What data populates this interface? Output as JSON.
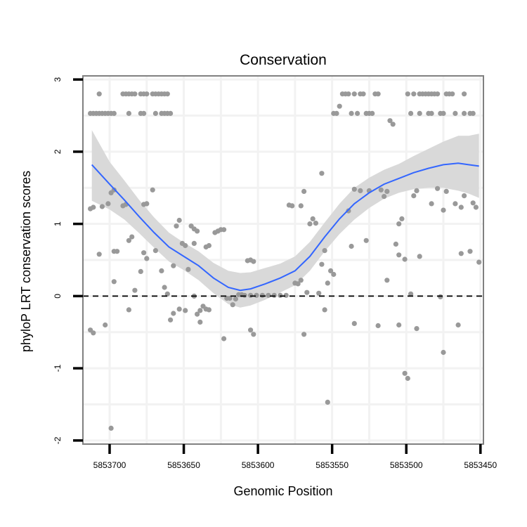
{
  "chart_data": {
    "type": "scatter",
    "title": "Conservation",
    "xlabel": "Genomic Position",
    "ylabel": "phyloP LRT conservation scores",
    "x_reversed": true,
    "xlim": [
      5853718,
      5853448
    ],
    "ylim": [
      -2.05,
      3.05
    ],
    "x_ticks": [
      5853700,
      5853650,
      5853600,
      5853550,
      5853500,
      5853450
    ],
    "x_tick_labels": [
      "5853700",
      "5853650",
      "5853600",
      "5853550",
      "5853500",
      "5853450"
    ],
    "y_ticks": [
      -2,
      -1,
      0,
      1,
      2,
      3
    ],
    "y_tick_labels": [
      "-2",
      "-1",
      "0",
      "1",
      "2",
      "3"
    ],
    "grid": true,
    "reference_line": {
      "y": 0,
      "style": "dashed",
      "color": "#000000"
    },
    "colors": {
      "points": "#999999",
      "smooth": "#3366ff",
      "band": "#d9d9d9",
      "panel_border": "#808080",
      "grid": "#f2f2f2"
    },
    "points": [
      [
        5853713,
        2.53
      ],
      [
        5853711,
        2.53
      ],
      [
        5853709,
        2.53
      ],
      [
        5853707,
        2.53
      ],
      [
        5853705,
        2.53
      ],
      [
        5853703,
        2.53
      ],
      [
        5853701,
        2.53
      ],
      [
        5853699,
        2.53
      ],
      [
        5853697,
        2.53
      ],
      [
        5853707,
        2.8
      ],
      [
        5853691,
        2.8
      ],
      [
        5853689,
        2.8
      ],
      [
        5853687,
        2.8
      ],
      [
        5853685,
        2.8
      ],
      [
        5853683,
        2.8
      ],
      [
        5853679,
        2.8
      ],
      [
        5853677,
        2.8
      ],
      [
        5853675,
        2.8
      ],
      [
        5853671,
        2.8
      ],
      [
        5853669,
        2.8
      ],
      [
        5853667,
        2.8
      ],
      [
        5853665,
        2.8
      ],
      [
        5853663,
        2.8
      ],
      [
        5853661,
        2.8
      ],
      [
        5853687,
        2.53
      ],
      [
        5853679,
        2.53
      ],
      [
        5853677,
        2.53
      ],
      [
        5853669,
        2.53
      ],
      [
        5853665,
        2.53
      ],
      [
        5853663,
        2.53
      ],
      [
        5853661,
        2.53
      ],
      [
        5853659,
        2.53
      ],
      [
        5853713,
        1.21
      ],
      [
        5853711,
        1.23
      ],
      [
        5853707,
        0.58
      ],
      [
        5853705,
        1.24
      ],
      [
        5853701,
        1.28
      ],
      [
        5853699,
        1.43
      ],
      [
        5853697,
        1.47
      ],
      [
        5853697,
        0.62
      ],
      [
        5853695,
        0.62
      ],
      [
        5853697,
        0.2
      ],
      [
        5853691,
        1.25
      ],
      [
        5853689,
        1.27
      ],
      [
        5853713,
        -0.47
      ],
      [
        5853711,
        -0.51
      ],
      [
        5853703,
        -0.4
      ],
      [
        5853699,
        -1.83
      ],
      [
        5853687,
        0.77
      ],
      [
        5853685,
        0.82
      ],
      [
        5853687,
        -0.19
      ],
      [
        5853683,
        0.08
      ],
      [
        5853679,
        0.34
      ],
      [
        5853677,
        1.27
      ],
      [
        5853675,
        1.28
      ],
      [
        5853677,
        0.6
      ],
      [
        5853675,
        0.52
      ],
      [
        5853671,
        1.47
      ],
      [
        5853669,
        0.63
      ],
      [
        5853665,
        0.35
      ],
      [
        5853663,
        0.12
      ],
      [
        5853661,
        0.03
      ],
      [
        5853659,
        -0.33
      ],
      [
        5853657,
        -0.24
      ],
      [
        5853657,
        0.42
      ],
      [
        5853655,
        0.97
      ],
      [
        5853653,
        1.05
      ],
      [
        5853651,
        0.73
      ],
      [
        5853649,
        0.7
      ],
      [
        5853647,
        0.37
      ],
      [
        5853645,
        0.97
      ],
      [
        5853643,
        0.93
      ],
      [
        5853643,
        0.73
      ],
      [
        5853641,
        0.9
      ],
      [
        5853653,
        -0.18
      ],
      [
        5853649,
        -0.2
      ],
      [
        5853643,
        0.0
      ],
      [
        5853641,
        -0.25
      ],
      [
        5853639,
        -0.36
      ],
      [
        5853639,
        -0.2
      ],
      [
        5853637,
        -0.14
      ],
      [
        5853635,
        -0.18
      ],
      [
        5853633,
        -0.19
      ],
      [
        5853635,
        0.68
      ],
      [
        5853633,
        0.7
      ],
      [
        5853629,
        0.88
      ],
      [
        5853627,
        0.9
      ],
      [
        5853625,
        0.92
      ],
      [
        5853623,
        0.92
      ],
      [
        5853621,
        -0.03
      ],
      [
        5853619,
        -0.03
      ],
      [
        5853617,
        -0.12
      ],
      [
        5853615,
        -0.04
      ],
      [
        5853613,
        0.02
      ],
      [
        5853611,
        0.02
      ],
      [
        5853623,
        -0.59
      ],
      [
        5853607,
        0.49
      ],
      [
        5853605,
        0.5
      ],
      [
        5853603,
        0.48
      ],
      [
        5853605,
        -0.47
      ],
      [
        5853603,
        -0.53
      ],
      [
        5853609,
        0.01
      ],
      [
        5853605,
        0.01
      ],
      [
        5853601,
        0.01
      ],
      [
        5853597,
        0.01
      ],
      [
        5853593,
        0.01
      ],
      [
        5853589,
        0.01
      ],
      [
        5853585,
        0.01
      ],
      [
        5853581,
        0.01
      ],
      [
        5853579,
        1.26
      ],
      [
        5853577,
        1.25
      ],
      [
        5853575,
        0.18
      ],
      [
        5853573,
        0.17
      ],
      [
        5853571,
        0.22
      ],
      [
        5853571,
        1.25
      ],
      [
        5853569,
        1.45
      ],
      [
        5853569,
        -0.53
      ],
      [
        5853567,
        0.05
      ],
      [
        5853565,
        1.0
      ],
      [
        5853563,
        1.07
      ],
      [
        5853561,
        1.01
      ],
      [
        5853559,
        0.04
      ],
      [
        5853557,
        0.44
      ],
      [
        5853557,
        1.7
      ],
      [
        5853555,
        0.63
      ],
      [
        5853555,
        -0.19
      ],
      [
        5853553,
        0.18
      ],
      [
        5853553,
        -1.47
      ],
      [
        5853551,
        0.35
      ],
      [
        5853549,
        0.3
      ],
      [
        5853549,
        2.53
      ],
      [
        5853547,
        2.53
      ],
      [
        5853545,
        2.63
      ],
      [
        5853543,
        2.8
      ],
      [
        5853541,
        2.8
      ],
      [
        5853539,
        2.8
      ],
      [
        5853537,
        2.53
      ],
      [
        5853535,
        2.8
      ],
      [
        5853533,
        2.53
      ],
      [
        5853531,
        2.8
      ],
      [
        5853529,
        2.8
      ],
      [
        5853527,
        2.53
      ],
      [
        5853525,
        2.53
      ],
      [
        5853523,
        2.53
      ],
      [
        5853521,
        2.8
      ],
      [
        5853519,
        2.8
      ],
      [
        5853539,
        1.18
      ],
      [
        5853537,
        0.69
      ],
      [
        5853535,
        1.48
      ],
      [
        5853535,
        -0.38
      ],
      [
        5853531,
        1.46
      ],
      [
        5853527,
        0.77
      ],
      [
        5853525,
        1.46
      ],
      [
        5853519,
        -0.41
      ],
      [
        5853517,
        1.47
      ],
      [
        5853515,
        1.38
      ],
      [
        5853513,
        1.45
      ],
      [
        5853511,
        2.43
      ],
      [
        5853509,
        2.38
      ],
      [
        5853513,
        0.22
      ],
      [
        5853507,
        0.72
      ],
      [
        5853505,
        0.57
      ],
      [
        5853505,
        1.0
      ],
      [
        5853503,
        1.07
      ],
      [
        5853501,
        0.51
      ],
      [
        5853505,
        -0.4
      ],
      [
        5853501,
        -1.07
      ],
      [
        5853499,
        -1.14
      ],
      [
        5853497,
        0.03
      ],
      [
        5853499,
        2.8
      ],
      [
        5853495,
        2.8
      ],
      [
        5853491,
        2.8
      ],
      [
        5853489,
        2.8
      ],
      [
        5853487,
        2.8
      ],
      [
        5853485,
        2.8
      ],
      [
        5853483,
        2.8
      ],
      [
        5853481,
        2.8
      ],
      [
        5853479,
        2.8
      ],
      [
        5853473,
        2.8
      ],
      [
        5853471,
        2.8
      ],
      [
        5853469,
        2.8
      ],
      [
        5853461,
        2.8
      ],
      [
        5853497,
        2.53
      ],
      [
        5853491,
        2.53
      ],
      [
        5853485,
        2.53
      ],
      [
        5853483,
        2.53
      ],
      [
        5853477,
        2.53
      ],
      [
        5853475,
        2.53
      ],
      [
        5853467,
        2.53
      ],
      [
        5853461,
        2.53
      ],
      [
        5853457,
        2.53
      ],
      [
        5853455,
        2.53
      ],
      [
        5853495,
        1.39
      ],
      [
        5853493,
        1.46
      ],
      [
        5853491,
        0.55
      ],
      [
        5853493,
        -0.45
      ],
      [
        5853483,
        1.28
      ],
      [
        5853479,
        1.49
      ],
      [
        5853477,
        -0.01
      ],
      [
        5853475,
        1.19
      ],
      [
        5853473,
        1.45
      ],
      [
        5853475,
        -0.78
      ],
      [
        5853467,
        1.28
      ],
      [
        5853465,
        -0.4
      ],
      [
        5853463,
        0.59
      ],
      [
        5853463,
        1.23
      ],
      [
        5853461,
        1.39
      ],
      [
        5853457,
        0.62
      ],
      [
        5853455,
        1.29
      ],
      [
        5853453,
        1.23
      ],
      [
        5853451,
        0.47
      ]
    ],
    "smooth_line": [
      [
        5853712,
        1.82
      ],
      [
        5853700,
        1.55
      ],
      [
        5853690,
        1.33
      ],
      [
        5853680,
        1.1
      ],
      [
        5853670,
        0.88
      ],
      [
        5853660,
        0.68
      ],
      [
        5853650,
        0.55
      ],
      [
        5853640,
        0.42
      ],
      [
        5853630,
        0.25
      ],
      [
        5853620,
        0.12
      ],
      [
        5853612,
        0.08
      ],
      [
        5853605,
        0.1
      ],
      [
        5853595,
        0.17
      ],
      [
        5853585,
        0.25
      ],
      [
        5853575,
        0.35
      ],
      [
        5853565,
        0.55
      ],
      [
        5853555,
        0.82
      ],
      [
        5853545,
        1.07
      ],
      [
        5853535,
        1.28
      ],
      [
        5853525,
        1.43
      ],
      [
        5853515,
        1.55
      ],
      [
        5853505,
        1.63
      ],
      [
        5853495,
        1.71
      ],
      [
        5853485,
        1.77
      ],
      [
        5853475,
        1.82
      ],
      [
        5853465,
        1.84
      ],
      [
        5853458,
        1.82
      ],
      [
        5853451,
        1.8
      ]
    ],
    "ci_band": [
      [
        5853712,
        1.32,
        2.3
      ],
      [
        5853700,
        1.2,
        1.86
      ],
      [
        5853690,
        1.06,
        1.6
      ],
      [
        5853680,
        0.87,
        1.33
      ],
      [
        5853670,
        0.67,
        1.09
      ],
      [
        5853660,
        0.48,
        0.88
      ],
      [
        5853650,
        0.36,
        0.74
      ],
      [
        5853640,
        0.22,
        0.62
      ],
      [
        5853630,
        0.04,
        0.46
      ],
      [
        5853620,
        -0.11,
        0.35
      ],
      [
        5853612,
        -0.16,
        0.32
      ],
      [
        5853605,
        -0.13,
        0.33
      ],
      [
        5853595,
        -0.05,
        0.39
      ],
      [
        5853585,
        0.05,
        0.45
      ],
      [
        5853575,
        0.15,
        0.55
      ],
      [
        5853565,
        0.35,
        0.75
      ],
      [
        5853555,
        0.62,
        1.02
      ],
      [
        5853545,
        0.86,
        1.28
      ],
      [
        5853535,
        1.06,
        1.5
      ],
      [
        5853525,
        1.22,
        1.64
      ],
      [
        5853515,
        1.35,
        1.75
      ],
      [
        5853505,
        1.43,
        1.83
      ],
      [
        5853495,
        1.48,
        1.94
      ],
      [
        5853485,
        1.5,
        2.04
      ],
      [
        5853475,
        1.5,
        2.14
      ],
      [
        5853465,
        1.46,
        2.22
      ],
      [
        5853458,
        1.42,
        2.22
      ],
      [
        5853451,
        1.36,
        2.25
      ]
    ]
  }
}
